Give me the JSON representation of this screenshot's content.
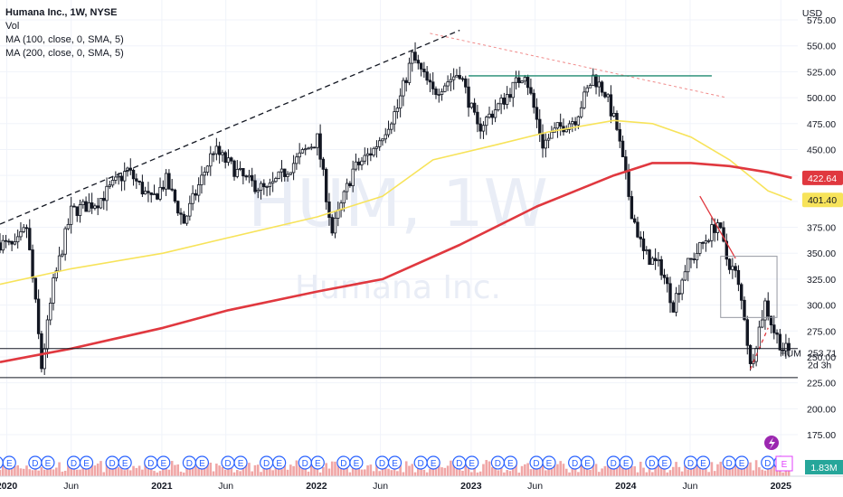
{
  "legend": {
    "title": "Humana Inc., 1W, NYSE",
    "vol": "Vol",
    "ma100": "MA (100, close, 0, SMA, 5)",
    "ma200": "MA (200, close, 0, SMA, 5)"
  },
  "watermark": {
    "symbol": "HUM, 1W",
    "name": "Humana Inc."
  },
  "currency": "USD",
  "colors": {
    "up": "#131722",
    "down": "#131722",
    "ma100": "#f7e35a",
    "ma200": "#e0383f",
    "trend_black": "#131722",
    "trend_red": "#f08a8a",
    "resistance": "#1f8a70",
    "earnings": "#2962ff",
    "volume": "#f0a6a6"
  },
  "badges": {
    "ma200_value": "422.64",
    "ma100_value": "401.40",
    "last_price": "253.71",
    "countdown": "2d 3h",
    "ticker": "HUM",
    "volume": "1.83M"
  },
  "chart_data": {
    "type": "candlestick",
    "title": "Humana Inc., 1W, NYSE",
    "ylabel": "USD",
    "ylim": [
      168,
      590
    ],
    "y_ticks": [
      "575.00",
      "550.00",
      "525.00",
      "500.00",
      "475.00",
      "450.00",
      "425.00",
      "400.00",
      "375.00",
      "350.00",
      "325.00",
      "300.00",
      "275.00",
      "250.00",
      "225.00",
      "200.00",
      "175.00"
    ],
    "x_ticks": [
      "2020",
      "Jun",
      "2021",
      "Jun",
      "2022",
      "Jun",
      "2023",
      "Jun",
      "2024",
      "Jun",
      "2025"
    ],
    "x_range": [
      "2019-12-16",
      "2025-02-10"
    ],
    "price_path": [
      [
        "2019-12-16",
        360
      ],
      [
        "2020-01-20",
        355
      ],
      [
        "2020-02-17",
        375
      ],
      [
        "2020-03-09",
        300
      ],
      [
        "2020-03-23",
        240
      ],
      [
        "2020-04-20",
        320
      ],
      [
        "2020-06-01",
        390
      ],
      [
        "2020-08-03",
        400
      ],
      [
        "2020-10-12",
        430
      ],
      [
        "2020-12-07",
        400
      ],
      [
        "2021-01-11",
        420
      ],
      [
        "2021-02-22",
        380
      ],
      [
        "2021-05-03",
        450
      ],
      [
        "2021-07-19",
        420
      ],
      [
        "2021-09-06",
        410
      ],
      [
        "2021-11-15",
        440
      ],
      [
        "2022-01-03",
        460
      ],
      [
        "2022-02-07",
        370
      ],
      [
        "2022-03-28",
        430
      ],
      [
        "2022-05-16",
        450
      ],
      [
        "2022-07-11",
        490
      ],
      [
        "2022-08-15",
        540
      ],
      [
        "2022-10-03",
        505
      ],
      [
        "2022-12-05",
        525
      ],
      [
        "2023-01-16",
        470
      ],
      [
        "2023-03-13",
        495
      ],
      [
        "2023-05-08",
        525
      ],
      [
        "2023-06-19",
        455
      ],
      [
        "2023-07-24",
        470
      ],
      [
        "2023-09-04",
        480
      ],
      [
        "2023-10-16",
        520
      ],
      [
        "2023-11-13",
        505
      ],
      [
        "2023-12-11",
        470
      ],
      [
        "2024-01-15",
        390
      ],
      [
        "2024-02-12",
        350
      ],
      [
        "2024-03-25",
        335
      ],
      [
        "2024-04-22",
        300
      ],
      [
        "2024-05-20",
        335
      ],
      [
        "2024-06-24",
        355
      ],
      [
        "2024-08-05",
        380
      ],
      [
        "2024-08-26",
        345
      ],
      [
        "2024-09-16",
        330
      ],
      [
        "2024-10-07",
        290
      ],
      [
        "2024-10-21",
        240
      ],
      [
        "2024-11-04",
        265
      ],
      [
        "2024-11-25",
        302
      ],
      [
        "2024-12-16",
        275
      ],
      [
        "2025-01-06",
        258
      ],
      [
        "2025-01-27",
        253.71
      ]
    ],
    "ma100_path": [
      [
        "2019-12-16",
        320
      ],
      [
        "2020-06-01",
        335
      ],
      [
        "2021-01-04",
        350
      ],
      [
        "2021-06-07",
        365
      ],
      [
        "2022-01-03",
        385
      ],
      [
        "2022-06-06",
        405
      ],
      [
        "2022-10-03",
        440
      ],
      [
        "2023-03-06",
        455
      ],
      [
        "2023-07-03",
        467
      ],
      [
        "2023-12-04",
        478
      ],
      [
        "2024-03-04",
        475
      ],
      [
        "2024-06-03",
        462
      ],
      [
        "2024-09-02",
        440
      ],
      [
        "2024-12-02",
        410
      ],
      [
        "2025-01-27",
        401.4
      ]
    ],
    "ma200_path": [
      [
        "2019-12-16",
        245
      ],
      [
        "2020-06-01",
        258
      ],
      [
        "2021-01-04",
        278
      ],
      [
        "2021-06-07",
        295
      ],
      [
        "2022-01-03",
        313
      ],
      [
        "2022-06-06",
        325
      ],
      [
        "2022-12-05",
        358
      ],
      [
        "2023-06-05",
        395
      ],
      [
        "2023-12-04",
        425
      ],
      [
        "2024-03-04",
        437
      ],
      [
        "2024-06-03",
        437
      ],
      [
        "2024-09-02",
        434
      ],
      [
        "2024-12-02",
        428
      ],
      [
        "2025-01-27",
        422.64
      ]
    ],
    "annotations": {
      "black_trendline": [
        [
          "2019-12-16",
          378
        ],
        [
          "2022-12-05",
          565
        ]
      ],
      "red_dashed_resistance": [
        [
          "2022-09-26",
          562
        ],
        [
          "2024-08-26",
          500
        ]
      ],
      "green_horizontal": [
        [
          "2022-12-26",
          521
        ],
        [
          "2024-07-22",
          521
        ]
      ],
      "red_down_line": [
        [
          "2024-06-24",
          405
        ],
        [
          "2024-09-16",
          345
        ]
      ],
      "red_dashed_rebound": [
        [
          "2024-10-21",
          238
        ],
        [
          "2024-12-02",
          278
        ]
      ],
      "grey_box": [
        [
          "2024-08-12",
          347
        ],
        [
          "2024-12-23",
          288
        ]
      ],
      "support_lines": [
        258,
        230
      ]
    },
    "earnings_markers": [
      "D",
      "E"
    ]
  }
}
